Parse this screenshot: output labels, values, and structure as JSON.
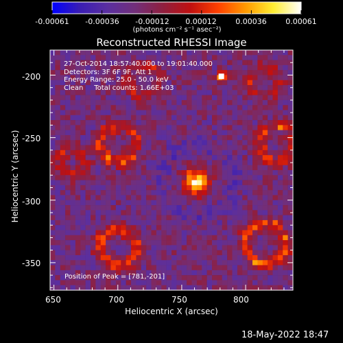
{
  "colorbar": {
    "colors": [
      "#0000ff",
      "#3a1db3",
      "#5a2fa0",
      "#722f7a",
      "#8f1f3f",
      "#c01010",
      "#ff4000",
      "#ff9a00",
      "#ffee33",
      "#ffffff"
    ],
    "ticks": [
      "-0.00061",
      "-0.00036",
      "-0.00012",
      "0.00012",
      "0.00036",
      "0.00061"
    ],
    "unit_label": "(photons cm⁻² s⁻¹ asec⁻²)"
  },
  "chart_data": {
    "type": "heatmap",
    "title": "Reconstructed RHESSI Image",
    "xlabel": "Heliocentric X (arcsec)",
    "ylabel": "Heliocentric Y (arcsec)",
    "xlim": [
      647,
      837
    ],
    "ylim": [
      -372,
      -180
    ],
    "xticks": [
      650,
      700,
      750,
      800
    ],
    "yticks": [
      -200,
      -250,
      -300,
      -350
    ],
    "peak": {
      "x": 781,
      "y": -201
    },
    "bright_source_center": [
      762,
      -285
    ],
    "annotations": [
      "27-Oct-2014 18:57:40.000 to 19:01:40.000",
      "Detectors: 3F 6F 9F, Att 1",
      "Energy Range: 25.0 - 50.0 keV",
      "Clean     Total counts: 1.66E+03"
    ],
    "peak_label": "Position of Peak = [781,-201]"
  },
  "footer": {
    "timestamp": "18-May-2022 18:47"
  }
}
